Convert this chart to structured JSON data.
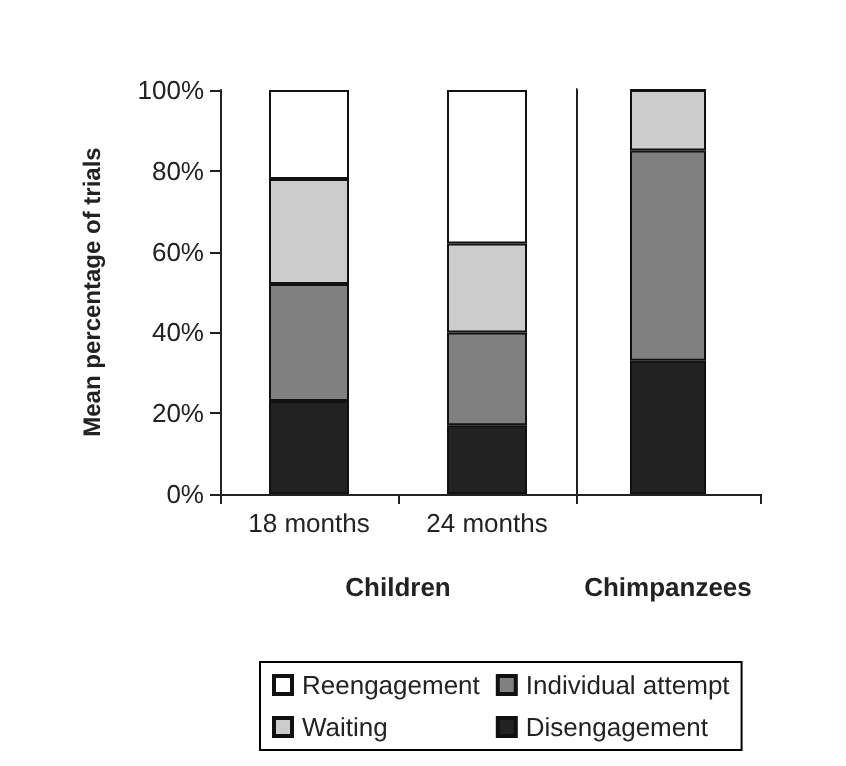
{
  "chart_data": [
    {
      "type": "bar",
      "stacked": true,
      "categories": [
        "18 months",
        "24 months"
      ],
      "xlabel": "Children",
      "ylabel": "Mean percentage of trials",
      "ylim": [
        0,
        100
      ],
      "yticks": [
        {
          "value": 0,
          "label": "0%"
        },
        {
          "value": 20,
          "label": "20%"
        },
        {
          "value": 40,
          "label": "40%"
        },
        {
          "value": 60,
          "label": "60%"
        },
        {
          "value": 80,
          "label": "80%"
        },
        {
          "value": 100,
          "label": "100%"
        }
      ],
      "legend": "bottom",
      "grid": false,
      "series": [
        {
          "name": "Disengagement",
          "color": "#222222",
          "values": [
            23,
            17
          ]
        },
        {
          "name": "Individual attempt",
          "color": "#808080",
          "values": [
            29,
            23
          ]
        },
        {
          "name": "Waiting",
          "color": "#cccccc",
          "values": [
            26,
            22
          ]
        },
        {
          "name": "Reengagement",
          "color": "#ffffff",
          "values": [
            22,
            38
          ]
        }
      ]
    },
    {
      "type": "bar",
      "stacked": true,
      "categories": [
        null
      ],
      "xlabel": "Chimpanzees",
      "ylim": [
        0,
        100
      ],
      "grid": false,
      "series": [
        {
          "color": "#222222",
          "values": [
            33
          ]
        },
        {
          "color": "#808080",
          "values": [
            52
          ]
        },
        {
          "color": "#cccccc",
          "values": [
            15
          ]
        },
        {
          "color": "#ffffff",
          "values": [
            0
          ]
        }
      ]
    }
  ]
}
